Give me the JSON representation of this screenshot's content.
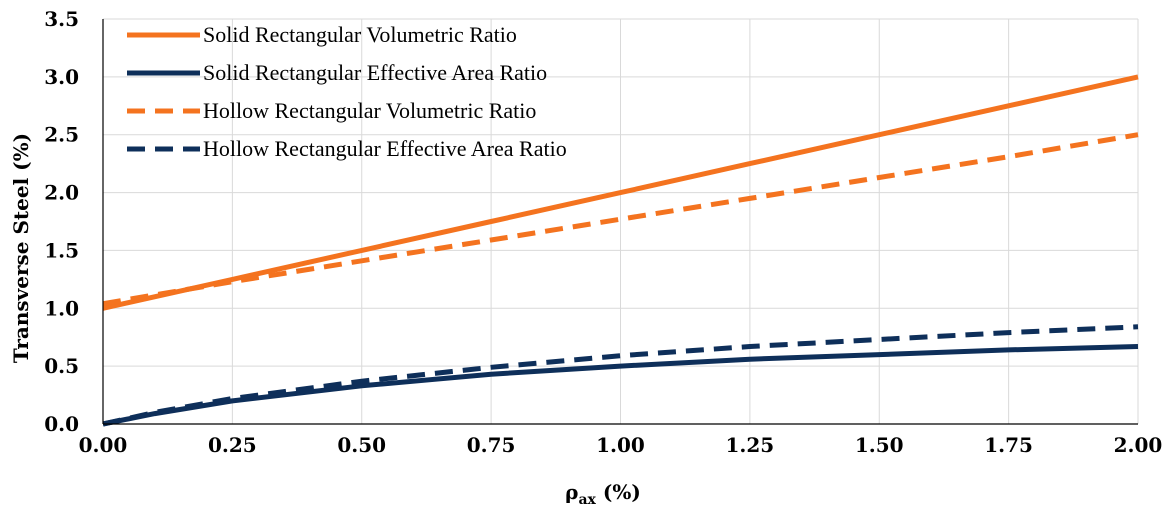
{
  "chart_data": {
    "type": "line",
    "xlabel_main": "ρ",
    "xlabel_sub": "ax",
    "xlabel_unit": " (%)",
    "ylabel": "Transverse Steel (%)",
    "xlim": [
      0,
      2
    ],
    "ylim": [
      0,
      3.5
    ],
    "x_ticks": [
      "0.00",
      "0.25",
      "0.50",
      "0.75",
      "1.00",
      "1.25",
      "1.50",
      "1.75",
      "2.00"
    ],
    "y_ticks": [
      "0.0",
      "0.5",
      "1.0",
      "1.5",
      "2.0",
      "2.5",
      "3.0",
      "3.5"
    ],
    "grid": true,
    "legend_position": "top-left",
    "series": [
      {
        "name": "Solid Rectangular Volumetric Ratio",
        "color": "#f4731f",
        "dash": "solid",
        "x": [
          0,
          0.25,
          0.5,
          0.75,
          1.0,
          1.25,
          1.5,
          1.75,
          2.0
        ],
        "y": [
          1.0,
          1.25,
          1.5,
          1.75,
          2.0,
          2.25,
          2.5,
          2.75,
          3.0
        ]
      },
      {
        "name": "Solid Rectangular Effective Area Ratio",
        "color": "#0e2f5a",
        "dash": "solid",
        "x": [
          0,
          0.1,
          0.25,
          0.5,
          0.75,
          1.0,
          1.25,
          1.5,
          1.75,
          2.0
        ],
        "y": [
          0,
          0.09,
          0.2,
          0.33,
          0.43,
          0.5,
          0.56,
          0.6,
          0.64,
          0.67
        ]
      },
      {
        "name": "Hollow Rectangular Volumetric Ratio",
        "color": "#f4731f",
        "dash": "dashed",
        "x": [
          0,
          0.25,
          0.5,
          0.75,
          1.0,
          1.25,
          1.5,
          1.75,
          2.0
        ],
        "y": [
          1.04,
          1.23,
          1.41,
          1.59,
          1.77,
          1.95,
          2.13,
          2.31,
          2.5
        ]
      },
      {
        "name": "Hollow Rectangular Effective Area Ratio",
        "color": "#0e2f5a",
        "dash": "dashed",
        "x": [
          0,
          0.1,
          0.25,
          0.5,
          0.75,
          1.0,
          1.25,
          1.5,
          1.75,
          2.0
        ],
        "y": [
          0,
          0.1,
          0.22,
          0.37,
          0.49,
          0.59,
          0.67,
          0.73,
          0.79,
          0.84
        ]
      }
    ]
  }
}
